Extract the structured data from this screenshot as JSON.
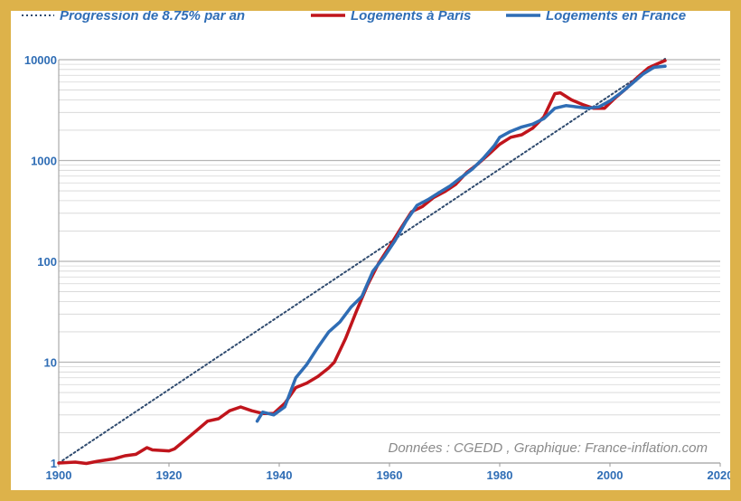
{
  "colors": {
    "frame": "#ddb24a",
    "paris": "#c0151c",
    "france": "#2f6db5",
    "trend": "#2e4a6e",
    "grid": "#c8c8c8",
    "labels": "#2f6db5"
  },
  "chart_data": {
    "type": "line",
    "title": "",
    "xlabel": "",
    "ylabel": "",
    "source": "Données : CGEDD , Graphique: France-inflation.com",
    "yscale": "log",
    "xlim": [
      1900,
      2020
    ],
    "ylim": [
      1,
      10000
    ],
    "grid": "horizontal",
    "legend_position": "top",
    "x_ticks": [
      "1900",
      "1920",
      "1940",
      "1960",
      "1980",
      "2000",
      "2020"
    ],
    "y_ticks": [
      "1",
      "10",
      "100",
      "1000",
      "10000"
    ],
    "series": [
      {
        "name": "Progression de 8.75% par an",
        "style": "dotted",
        "x": [
          1900,
          2010
        ],
        "y": [
          1,
          10199
        ]
      },
      {
        "name": "Logements à Paris",
        "style": "solid",
        "x": [
          1900,
          1903,
          1905,
          1907,
          1910,
          1912,
          1914,
          1916,
          1917,
          1920,
          1921,
          1923,
          1925,
          1927,
          1929,
          1931,
          1933,
          1935,
          1937,
          1939,
          1941,
          1943,
          1945,
          1947,
          1949,
          1950,
          1952,
          1954,
          1956,
          1958,
          1960,
          1962,
          1964,
          1966,
          1968,
          1970,
          1972,
          1974,
          1976,
          1978,
          1980,
          1982,
          1984,
          1986,
          1988,
          1990,
          1991,
          1993,
          1995,
          1997,
          1999,
          2001,
          2003,
          2005,
          2007,
          2009,
          2010
        ],
        "y": [
          1,
          1.02,
          0.99,
          1.04,
          1.1,
          1.18,
          1.22,
          1.42,
          1.35,
          1.32,
          1.38,
          1.7,
          2.1,
          2.6,
          2.75,
          3.3,
          3.6,
          3.3,
          3.1,
          3.1,
          3.9,
          5.6,
          6.2,
          7.2,
          8.8,
          10,
          17,
          32,
          58,
          95,
          140,
          210,
          310,
          350,
          430,
          490,
          580,
          760,
          920,
          1150,
          1450,
          1700,
          1800,
          2100,
          2700,
          4600,
          4700,
          4000,
          3600,
          3300,
          3300,
          4200,
          5200,
          6700,
          8300,
          9300,
          9800
        ]
      },
      {
        "name": "Logements en France",
        "style": "solid",
        "x": [
          1936,
          1937,
          1939,
          1941,
          1943,
          1945,
          1947,
          1949,
          1951,
          1953,
          1955,
          1957,
          1959,
          1961,
          1963,
          1965,
          1967,
          1969,
          1971,
          1973,
          1975,
          1977,
          1979,
          1980,
          1982,
          1984,
          1986,
          1988,
          1990,
          1992,
          1994,
          1996,
          1998,
          2000,
          2002,
          2004,
          2006,
          2008,
          2010
        ],
        "y": [
          2.6,
          3.2,
          3.0,
          3.6,
          7.0,
          9.5,
          14,
          20,
          25,
          35,
          45,
          80,
          110,
          160,
          250,
          360,
          410,
          480,
          560,
          680,
          820,
          1050,
          1400,
          1700,
          1950,
          2150,
          2300,
          2600,
          3300,
          3500,
          3400,
          3300,
          3400,
          3900,
          4700,
          5800,
          7200,
          8400,
          8600
        ]
      }
    ]
  }
}
